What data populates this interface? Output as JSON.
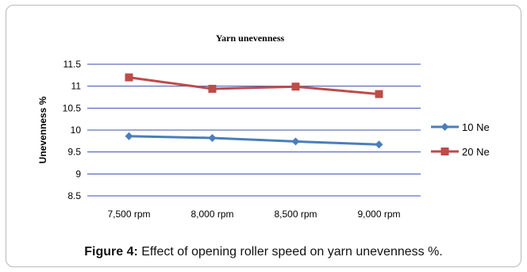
{
  "chart_data": {
    "type": "line",
    "title": "Yarn unevenness",
    "xlabel": "",
    "ylabel": "Unevenness %",
    "categories": [
      "7,500 rpm",
      "8,000 rpm",
      "8,500 rpm",
      "9,000 rpm"
    ],
    "ylim": [
      8.5,
      11.5
    ],
    "yticks": [
      "8.5",
      "9",
      "9.5",
      "10",
      "10.5",
      "11",
      "11.5"
    ],
    "grid": true,
    "legend_position": "right",
    "series": [
      {
        "name": "10 Ne",
        "color": "#4a7ebb",
        "marker": "diamond",
        "values": [
          9.86,
          9.82,
          9.74,
          9.67
        ]
      },
      {
        "name": "20 Ne",
        "color": "#be4b48",
        "marker": "square",
        "values": [
          11.2,
          10.94,
          10.99,
          10.82
        ]
      }
    ]
  },
  "caption": {
    "label": "Figure 4:",
    "text": " Effect of opening roller speed on yarn unevenness %."
  }
}
